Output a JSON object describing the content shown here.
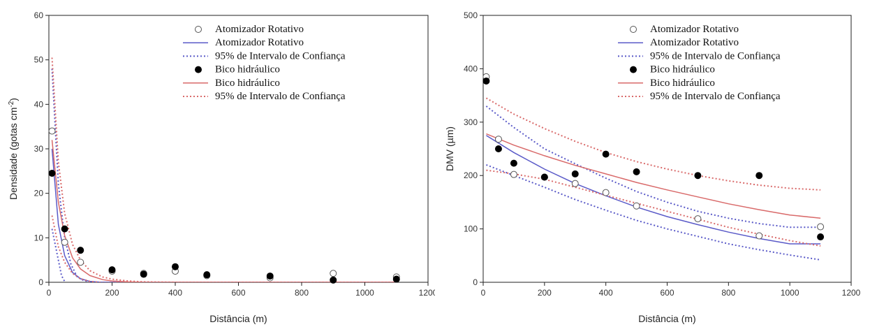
{
  "colors": {
    "blue": "#5a5ac8",
    "red": "#d96a6a",
    "marker": "#000000",
    "axis": "#222222"
  },
  "chart_data": [
    {
      "type": "scatter",
      "xlabel": "Distância (m)",
      "ylabel_main": "Densidade (gotas cm",
      "ylabel_sup": "-2",
      "ylabel_end": ")",
      "xlim": [
        0,
        1200
      ],
      "ylim": [
        0,
        60
      ],
      "xticks": [
        0,
        200,
        400,
        600,
        800,
        1000,
        1200
      ],
      "yticks": [
        0,
        10,
        20,
        30,
        40,
        50,
        60
      ],
      "legend_position": "top-right",
      "legend": [
        {
          "label": "Atomizador Rotativo",
          "kind": "open-circle",
          "color": "#000000"
        },
        {
          "label": "Atomizador Rotativo",
          "kind": "solid-line",
          "color": "#5a5ac8"
        },
        {
          "label": "95%  de Intervalo de Confiança",
          "kind": "dotted-line",
          "color": "#5a5ac8"
        },
        {
          "label": "Bico hidráulico",
          "kind": "filled-circle",
          "color": "#000000"
        },
        {
          "label": "Bico hidráulico",
          "kind": "solid-line",
          "color": "#d96a6a"
        },
        {
          "label": " 95%  de Intervalo de Confiança",
          "kind": "dotted-line",
          "color": "#d96a6a"
        }
      ],
      "series": [
        {
          "kind": "open-circle",
          "x": [
            10,
            50,
            100,
            200,
            300,
            400,
            500,
            700,
            900,
            1100
          ],
          "y": [
            34,
            9,
            4.5,
            2.5,
            2,
            2.5,
            1.5,
            1,
            2,
            1.2
          ]
        },
        {
          "kind": "filled-circle",
          "x": [
            10,
            50,
            100,
            200,
            300,
            400,
            500,
            700,
            900,
            1100
          ],
          "y": [
            24.5,
            12,
            7.2,
            2.8,
            1.8,
            3.5,
            1.7,
            1.4,
            0.5,
            0.7
          ]
        },
        {
          "kind": "solid-line",
          "color": "#5a5ac8",
          "x": [
            10,
            30,
            50,
            75,
            100,
            130,
            160,
            200,
            300,
            400,
            600,
            800,
            1000,
            1100
          ],
          "y": [
            30,
            13,
            6,
            2.2,
            0.8,
            0.2,
            0.05,
            0,
            0,
            0,
            0,
            0,
            0,
            0
          ]
        },
        {
          "kind": "dotted-line",
          "color": "#5a5ac8",
          "x": [
            10,
            30,
            50,
            70,
            90,
            110,
            130,
            160,
            200,
            300,
            400,
            600,
            800,
            1000,
            1100
          ],
          "y": [
            48,
            22,
            10,
            4,
            1.2,
            0.4,
            0.1,
            0,
            0,
            0,
            0,
            0,
            0,
            0,
            0
          ]
        },
        {
          "kind": "dotted-line",
          "color": "#5a5ac8",
          "x": [
            10,
            40,
            60,
            80,
            100,
            120,
            150,
            200,
            250,
            300,
            400,
            600,
            800,
            1000,
            1100
          ],
          "y": [
            12,
            1.5,
            -1.2,
            -2,
            -1.9,
            -1.4,
            -0.8,
            -0.3,
            -0.1,
            0,
            0,
            0,
            0,
            0,
            0
          ]
        },
        {
          "kind": "solid-line",
          "color": "#d96a6a",
          "x": [
            10,
            30,
            50,
            75,
            100,
            130,
            170,
            200,
            250,
            300,
            400,
            600,
            800,
            1000,
            1100
          ],
          "y": [
            32,
            18,
            10.5,
            5.5,
            3,
            1.5,
            0.6,
            0.3,
            0.1,
            0,
            0,
            0,
            0,
            0,
            0
          ]
        },
        {
          "kind": "dotted-line",
          "color": "#d96a6a",
          "x": [
            10,
            30,
            50,
            75,
            100,
            130,
            170,
            200,
            250,
            300,
            400,
            600,
            800,
            1000,
            1100
          ],
          "y": [
            50.5,
            27,
            15.5,
            8.5,
            5,
            2.6,
            1.2,
            0.7,
            0.3,
            0.1,
            0,
            0,
            0,
            0,
            0
          ]
        },
        {
          "kind": "dotted-line",
          "color": "#d96a6a",
          "x": [
            10,
            30,
            50,
            75,
            100,
            130,
            170,
            200,
            250,
            300,
            400,
            600,
            800,
            1000,
            1100
          ],
          "y": [
            15,
            8,
            4.5,
            2,
            0.8,
            0.2,
            -0.1,
            -0.1,
            0,
            0,
            0,
            0,
            0,
            0,
            0
          ]
        }
      ]
    },
    {
      "type": "scatter",
      "xlabel": "Distância (m)",
      "ylabel_main": "DMV (µm)",
      "ylabel_sup": "",
      "ylabel_end": "",
      "xlim": [
        0,
        1200
      ],
      "ylim": [
        0,
        500
      ],
      "xticks": [
        0,
        200,
        400,
        600,
        800,
        1000,
        1200
      ],
      "yticks": [
        0,
        100,
        200,
        300,
        400,
        500
      ],
      "legend_position": "top-right",
      "legend": [
        {
          "label": "Atomizador Rotativo",
          "kind": "open-circle",
          "color": "#000000"
        },
        {
          "label": "Atomizador Rotativo",
          "kind": "solid-line",
          "color": "#5a5ac8"
        },
        {
          "label": "95%  de Intervalo de Confiança",
          "kind": "dotted-line",
          "color": "#5a5ac8"
        },
        {
          "label": "Bico hidráulico",
          "kind": "filled-circle",
          "color": "#000000"
        },
        {
          "label": "Bico hidráulico",
          "kind": "solid-line",
          "color": "#d96a6a"
        },
        {
          "label": " 95%  de Intervalo de Confiança",
          "kind": "dotted-line",
          "color": "#d96a6a"
        }
      ],
      "series": [
        {
          "kind": "open-circle",
          "x": [
            10,
            50,
            100,
            200,
            300,
            400,
            500,
            700,
            900,
            1100
          ],
          "y": [
            385,
            268,
            202,
            197,
            185,
            168,
            143,
            119,
            87,
            104
          ]
        },
        {
          "kind": "filled-circle",
          "x": [
            10,
            50,
            100,
            200,
            300,
            400,
            500,
            700,
            900,
            1100
          ],
          "y": [
            377,
            250,
            223,
            197,
            203,
            240,
            207,
            200,
            200,
            85
          ]
        },
        {
          "kind": "solid-line",
          "color": "#5a5ac8",
          "x": [
            10,
            100,
            200,
            300,
            400,
            500,
            600,
            700,
            800,
            900,
            1000,
            1100
          ],
          "y": [
            275,
            243,
            212,
            185,
            162,
            141,
            123,
            108,
            94,
            82,
            72,
            72
          ]
        },
        {
          "kind": "dotted-line",
          "color": "#5a5ac8",
          "x": [
            10,
            100,
            200,
            300,
            400,
            500,
            600,
            700,
            800,
            900,
            1000,
            1100
          ],
          "y": [
            330,
            290,
            250,
            222,
            195,
            170,
            150,
            133,
            120,
            110,
            103,
            103
          ]
        },
        {
          "kind": "dotted-line",
          "color": "#5a5ac8",
          "x": [
            10,
            100,
            200,
            300,
            400,
            500,
            600,
            700,
            800,
            900,
            1000,
            1100
          ],
          "y": [
            220,
            200,
            178,
            155,
            135,
            116,
            100,
            86,
            72,
            61,
            51,
            42
          ]
        },
        {
          "kind": "solid-line",
          "color": "#d96a6a",
          "x": [
            10,
            100,
            200,
            300,
            400,
            500,
            600,
            700,
            800,
            900,
            1000,
            1100
          ],
          "y": [
            278,
            257,
            237,
            219,
            203,
            187,
            173,
            160,
            147,
            136,
            126,
            120
          ]
        },
        {
          "kind": "dotted-line",
          "color": "#d96a6a",
          "x": [
            10,
            100,
            200,
            300,
            400,
            500,
            600,
            700,
            800,
            900,
            1000,
            1100
          ],
          "y": [
            345,
            315,
            288,
            264,
            243,
            226,
            212,
            200,
            190,
            182,
            176,
            173
          ]
        },
        {
          "kind": "dotted-line",
          "color": "#d96a6a",
          "x": [
            10,
            100,
            200,
            300,
            400,
            500,
            600,
            700,
            800,
            900,
            1000,
            1100
          ],
          "y": [
            210,
            203,
            193,
            178,
            163,
            148,
            133,
            118,
            103,
            90,
            78,
            68
          ]
        }
      ]
    }
  ]
}
